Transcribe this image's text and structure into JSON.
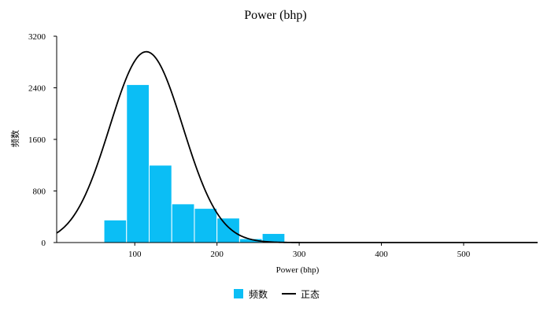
{
  "chart_data": {
    "type": "bar",
    "title": "Power (bhp)",
    "xlabel": "Power (bhp)",
    "ylabel": "频数",
    "xlim": [
      5,
      590
    ],
    "ylim": [
      0,
      3200
    ],
    "x_ticks": [
      100,
      200,
      300,
      400,
      500
    ],
    "y_ticks": [
      0,
      800,
      1600,
      2400,
      3200
    ],
    "colors": {
      "bar": "#0bbef5",
      "bar_edge": "#ffffff",
      "curve": "#000000",
      "axis": "#000000"
    },
    "histogram": {
      "name": "频数",
      "bins": [
        {
          "start": 62.5,
          "end": 90,
          "count": 350
        },
        {
          "start": 90,
          "end": 117.5,
          "count": 2450
        },
        {
          "start": 117.5,
          "end": 145,
          "count": 1200
        },
        {
          "start": 145,
          "end": 172.5,
          "count": 600
        },
        {
          "start": 172.5,
          "end": 200,
          "count": 530
        },
        {
          "start": 200,
          "end": 227.5,
          "count": 380
        },
        {
          "start": 227.5,
          "end": 255,
          "count": 60
        },
        {
          "start": 255,
          "end": 282.5,
          "count": 140
        }
      ]
    },
    "normal_curve": {
      "name": "正态",
      "mean": 114,
      "sd": 44.5,
      "peak": 2960
    },
    "legend": {
      "position": "bottom",
      "items": [
        {
          "label": "频数",
          "kind": "bar"
        },
        {
          "label": "正态",
          "kind": "line"
        }
      ]
    },
    "grid": false
  }
}
